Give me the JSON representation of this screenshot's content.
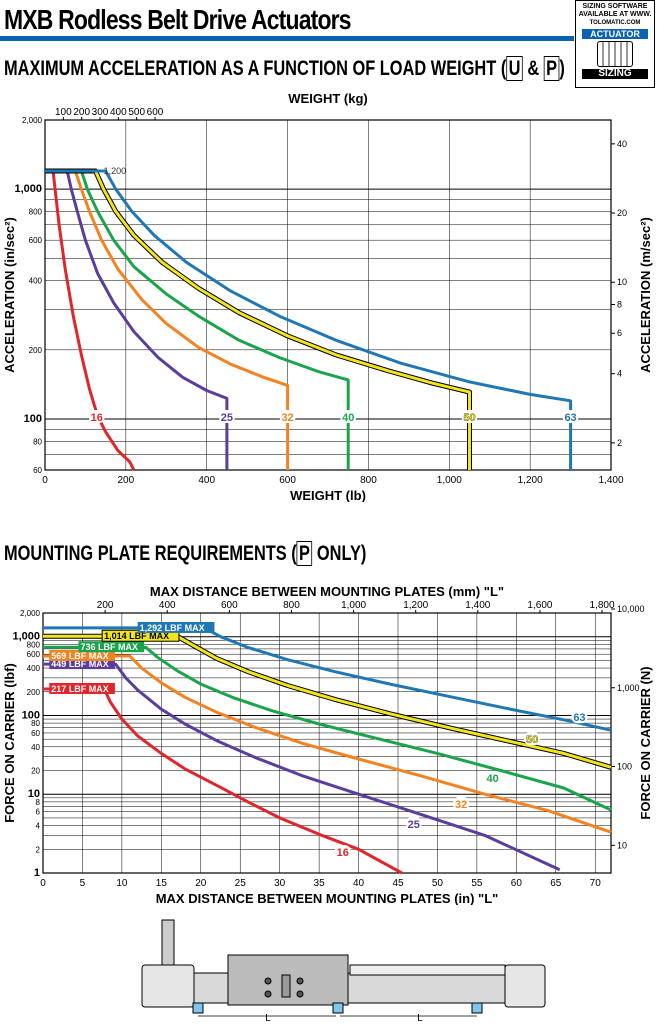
{
  "header": {
    "title": "MXB Rodless Belt Drive Actuators",
    "sizing_box": {
      "line1": "SIZING SOFTWARE",
      "line2": "AVAILABLE AT WWW.",
      "line3": "TOLOMATIC.COM",
      "badge1": "ACTUATOR",
      "badge2": "SIZING"
    }
  },
  "section1": {
    "title": "MAXIMUM ACCELERATION AS A FUNCTION OF LOAD WEIGHT (",
    "title_u": "U",
    "title_amp": " & ",
    "title_p": "P",
    "title_end": ")"
  },
  "section2": {
    "title": "MOUNTING PLATE REQUIREMENTS (",
    "title_p": "P",
    "title_end": " ONLY)"
  },
  "drawing": {
    "dim_label": "L"
  },
  "colors": {
    "16": "#e2252b",
    "25": "#5b3d9e",
    "32": "#f58220",
    "40": "#1aa54b",
    "50": "#f2e51c",
    "63": "#1f78b4",
    "accent": "#0a63b0"
  },
  "chart_data": [
    {
      "type": "line",
      "title": "",
      "xlabel": "WEIGHT (lb)",
      "x2label": "WEIGHT (kg)",
      "ylabel": "ACCELERATION (in/sec²)",
      "y2label": "ACCELERATION (m/sec²)",
      "x_scale": "linear",
      "y_scale": "log",
      "xlim": [
        0,
        1400
      ],
      "ylim": [
        60,
        2000
      ],
      "x_ticks": [
        "0",
        "200",
        "400",
        "600",
        "800",
        "1,000",
        "1,200",
        "1,400"
      ],
      "x2_ticks": [
        "100",
        "200",
        "300",
        "400",
        "500",
        "600"
      ],
      "y_ticks": [
        "60",
        "80",
        "100",
        "200",
        "400",
        "600",
        "800",
        "1,000",
        "2,000"
      ],
      "y2_ticks": [
        "2",
        "4",
        "6",
        "8",
        "10",
        "20",
        "40"
      ],
      "annotation": "1,200",
      "series": [
        {
          "name": "16",
          "points": [
            [
              0,
              1200
            ],
            [
              20,
              1200
            ],
            [
              25,
              1000
            ],
            [
              35,
              700
            ],
            [
              50,
              450
            ],
            [
              70,
              280
            ],
            [
              90,
              190
            ],
            [
              110,
              135
            ],
            [
              130,
              103
            ],
            [
              150,
              88
            ],
            [
              180,
              73
            ],
            [
              210,
              65
            ],
            [
              220,
              60
            ]
          ]
        },
        {
          "name": "25",
          "points": [
            [
              0,
              1200
            ],
            [
              55,
              1200
            ],
            [
              65,
              1000
            ],
            [
              80,
              800
            ],
            [
              100,
              600
            ],
            [
              130,
              430
            ],
            [
              170,
              320
            ],
            [
              220,
              240
            ],
            [
              280,
              185
            ],
            [
              340,
              152
            ],
            [
              400,
              133
            ],
            [
              450,
              123
            ],
            [
              450,
              60
            ]
          ]
        },
        {
          "name": "32",
          "points": [
            [
              0,
              1200
            ],
            [
              75,
              1200
            ],
            [
              90,
              1000
            ],
            [
              110,
              800
            ],
            [
              140,
              600
            ],
            [
              180,
              450
            ],
            [
              240,
              330
            ],
            [
              300,
              260
            ],
            [
              380,
              205
            ],
            [
              460,
              173
            ],
            [
              540,
              152
            ],
            [
              600,
              140
            ],
            [
              600,
              60
            ]
          ]
        },
        {
          "name": "40",
          "points": [
            [
              0,
              1200
            ],
            [
              90,
              1200
            ],
            [
              105,
              1000
            ],
            [
              130,
              800
            ],
            [
              170,
              600
            ],
            [
              220,
              460
            ],
            [
              300,
              350
            ],
            [
              380,
              280
            ],
            [
              480,
              220
            ],
            [
              580,
              185
            ],
            [
              680,
              160
            ],
            [
              750,
              148
            ],
            [
              750,
              60
            ]
          ]
        },
        {
          "name": "50",
          "points": [
            [
              0,
              1200
            ],
            [
              125,
              1200
            ],
            [
              145,
              1000
            ],
            [
              175,
              800
            ],
            [
              220,
              630
            ],
            [
              290,
              480
            ],
            [
              380,
              370
            ],
            [
              480,
              290
            ],
            [
              600,
              230
            ],
            [
              720,
              190
            ],
            [
              850,
              162
            ],
            [
              960,
              143
            ],
            [
              1050,
              131
            ],
            [
              1050,
              60
            ]
          ]
        },
        {
          "name": "63",
          "points": [
            [
              0,
              1200
            ],
            [
              150,
              1200
            ],
            [
              175,
              1000
            ],
            [
              215,
              800
            ],
            [
              270,
              630
            ],
            [
              350,
              480
            ],
            [
              460,
              360
            ],
            [
              580,
              280
            ],
            [
              720,
              220
            ],
            [
              880,
              175
            ],
            [
              1050,
              145
            ],
            [
              1200,
              128
            ],
            [
              1300,
              120
            ],
            [
              1300,
              60
            ]
          ]
        }
      ]
    },
    {
      "type": "line",
      "title": "",
      "xlabel": "MAX DISTANCE BETWEEN MOUNTING PLATES (in) \"L\"",
      "x2label": "MAX DISTANCE BETWEEN MOUNTING PLATES (mm) \"L\"",
      "ylabel": "FORCE ON CARRIER (lbf)",
      "y2label": "FORCE ON CARRIER (N)",
      "x_scale": "linear",
      "y_scale": "log",
      "xlim": [
        0,
        72
      ],
      "ylim": [
        1,
        2000
      ],
      "x_ticks": [
        "0",
        "5",
        "10",
        "15",
        "20",
        "25",
        "30",
        "35",
        "40",
        "45",
        "50",
        "55",
        "60",
        "65",
        "70"
      ],
      "x2_ticks": [
        "200",
        "400",
        "600",
        "800",
        "1,000",
        "1,200",
        "1,400",
        "1,600",
        "1,800"
      ],
      "y_ticks": [
        "1",
        "2",
        "4",
        "6",
        "8",
        "10",
        "20",
        "40",
        "60",
        "80",
        "100",
        "200",
        "400",
        "600",
        "800",
        "1,000",
        "2,000"
      ],
      "y2_ticks": [
        "10",
        "100",
        "1,000",
        "10,000"
      ],
      "series": [
        {
          "name": "16",
          "max_label": "217 LBF MAX",
          "points": [
            [
              0,
              217
            ],
            [
              7.8,
              217
            ],
            [
              8.5,
              150
            ],
            [
              10,
              90
            ],
            [
              12,
              55
            ],
            [
              15,
              33
            ],
            [
              18,
              21
            ],
            [
              22,
              13
            ],
            [
              26,
              8
            ],
            [
              30,
              5
            ],
            [
              35,
              3.1
            ],
            [
              40,
              2
            ],
            [
              45.5,
              1
            ]
          ]
        },
        {
          "name": "25",
          "max_label": "449 LBF MAX",
          "points": [
            [
              0,
              449
            ],
            [
              9.2,
              449
            ],
            [
              10.5,
              300
            ],
            [
              12,
              210
            ],
            [
              15,
              120
            ],
            [
              18,
              78
            ],
            [
              22,
              48
            ],
            [
              27,
              29
            ],
            [
              33,
              17
            ],
            [
              40,
              10
            ],
            [
              48,
              5.5
            ],
            [
              56,
              3
            ],
            [
              65.5,
              1.1
            ]
          ]
        },
        {
          "name": "32",
          "max_label": "569 LBF MAX",
          "points": [
            [
              0,
              569
            ],
            [
              11,
              569
            ],
            [
              12.5,
              400
            ],
            [
              15,
              260
            ],
            [
              18,
              170
            ],
            [
              22,
              110
            ],
            [
              27,
              70
            ],
            [
              33,
              44
            ],
            [
              40,
              28
            ],
            [
              48,
              17
            ],
            [
              56,
              10
            ],
            [
              64,
              6.2
            ],
            [
              72,
              3.3
            ]
          ]
        },
        {
          "name": "40",
          "max_label": "736 LBF MAX",
          "points": [
            [
              0,
              736
            ],
            [
              13,
              736
            ],
            [
              14.5,
              550
            ],
            [
              17,
              370
            ],
            [
              20,
              250
            ],
            [
              24,
              170
            ],
            [
              29,
              115
            ],
            [
              35,
              78
            ],
            [
              42,
              52
            ],
            [
              50,
              33
            ],
            [
              58,
              20
            ],
            [
              66,
              12
            ],
            [
              72,
              6.3
            ]
          ]
        },
        {
          "name": "50",
          "max_label": "1,014 LBF MAX",
          "points": [
            [
              0,
              1014
            ],
            [
              17,
              1014
            ],
            [
              19,
              780
            ],
            [
              22,
              530
            ],
            [
              26,
              360
            ],
            [
              31,
              240
            ],
            [
              37,
              160
            ],
            [
              44,
              105
            ],
            [
              52,
              68
            ],
            [
              60,
              45
            ],
            [
              66,
              33
            ],
            [
              72,
              22
            ]
          ]
        },
        {
          "name": "63",
          "max_label": "1,292 LBF MAX",
          "points": [
            [
              0,
              1292
            ],
            [
              20.5,
              1292
            ],
            [
              22.5,
              1000
            ],
            [
              26,
              730
            ],
            [
              31,
              510
            ],
            [
              37,
              360
            ],
            [
              44,
              250
            ],
            [
              52,
              170
            ],
            [
              60,
              116
            ],
            [
              66,
              88
            ],
            [
              72,
              65
            ]
          ]
        }
      ]
    }
  ]
}
